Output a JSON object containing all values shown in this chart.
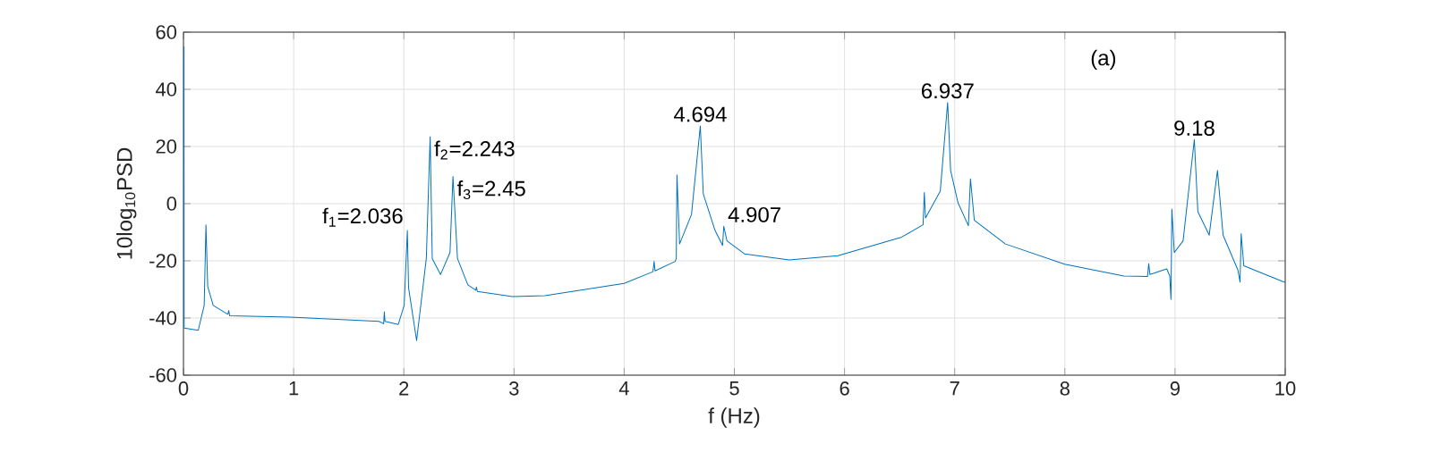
{
  "chart_data": {
    "type": "line",
    "xlabel": "f (Hz)",
    "ylabel": "10log$_{10}$PSD",
    "xlim": [
      0,
      10
    ],
    "ylim": [
      -60,
      60
    ],
    "xticks": [
      0,
      1,
      2,
      3,
      4,
      5,
      6,
      7,
      8,
      9,
      10
    ],
    "yticks": [
      -60,
      -40,
      -20,
      0,
      20,
      40,
      60
    ],
    "grid": true,
    "annotations": [
      "(a)",
      {
        "text": "f$_{1}$=2.036",
        "x": 2.032,
        "y": -9.4
      },
      {
        "text": "f$_{2}$=2.243",
        "x": 2.239,
        "y": 23.4
      },
      {
        "text": "f$_{3}$=2.45",
        "x": 2.446,
        "y": 9.5
      },
      {
        "text": "4.694",
        "x": 4.691,
        "y": 27.2
      },
      {
        "text": "4.907",
        "x": 4.904,
        "y": -7.9
      },
      {
        "text": "6.937",
        "x": 6.936,
        "y": 35.4
      },
      {
        "text": "9.18",
        "x": 9.175,
        "y": 22.4
      }
    ],
    "series": [
      {
        "color": "#0072bd",
        "x": [
          0.005,
          0.006,
          0.134,
          0.188,
          0.204,
          0.22,
          0.27,
          0.403,
          0.411,
          0.419,
          0.968,
          1.774,
          1.817,
          1.823,
          1.829,
          1.949,
          2.003,
          2.032,
          2.043,
          2.116,
          2.204,
          2.239,
          2.258,
          2.333,
          2.419,
          2.446,
          2.487,
          2.581,
          2.653,
          2.659,
          2.667,
          2.984,
          3.28,
          4.0,
          4.261,
          4.272,
          4.28,
          4.463,
          4.473,
          4.479,
          4.503,
          4.611,
          4.691,
          4.718,
          4.825,
          4.893,
          4.904,
          4.933,
          5.094,
          5.498,
          5.94,
          6.519,
          6.713,
          6.724,
          6.735,
          6.869,
          6.936,
          6.963,
          7.03,
          7.124,
          7.143,
          7.178,
          7.46,
          7.998,
          8.535,
          8.75,
          8.761,
          8.772,
          8.925,
          8.952,
          8.963,
          8.971,
          8.993,
          9.073,
          9.175,
          9.207,
          9.31,
          9.385,
          9.436,
          9.571,
          9.59,
          9.6,
          9.624,
          9.974,
          10
        ],
        "values": [
          55,
          -43.5,
          -44.3,
          -35.6,
          -7.4,
          -29,
          -35.6,
          -38.7,
          -37.4,
          -39.2,
          -39.7,
          -41.2,
          -42,
          -37.8,
          -41.2,
          -42.3,
          -35.6,
          -9.4,
          -29.4,
          -47.9,
          -19.2,
          23.4,
          -19.2,
          -24.8,
          -17.1,
          9.5,
          -19.2,
          -28.4,
          -30.3,
          -29.2,
          -30.7,
          -32.5,
          -32.2,
          -27.9,
          -23.8,
          -20.2,
          -23.5,
          -20.2,
          -19.2,
          10.1,
          -14.1,
          -3.8,
          27.2,
          3.4,
          -9.4,
          -14.6,
          -7.9,
          -13,
          -17.6,
          -19.7,
          -18.2,
          -11.7,
          -7.4,
          3.9,
          -5,
          4.4,
          35.4,
          11.6,
          0.3,
          -7.7,
          8.7,
          -5.8,
          -14.1,
          -21.2,
          -25.3,
          -25.5,
          -21,
          -24.8,
          -22.8,
          -25.3,
          -33.5,
          -1.9,
          -17.1,
          -13,
          22.4,
          -2.8,
          -11,
          11.6,
          -11,
          -23.3,
          -27.4,
          -10.5,
          -21.7,
          -27.2,
          -27.5
        ]
      }
    ]
  }
}
